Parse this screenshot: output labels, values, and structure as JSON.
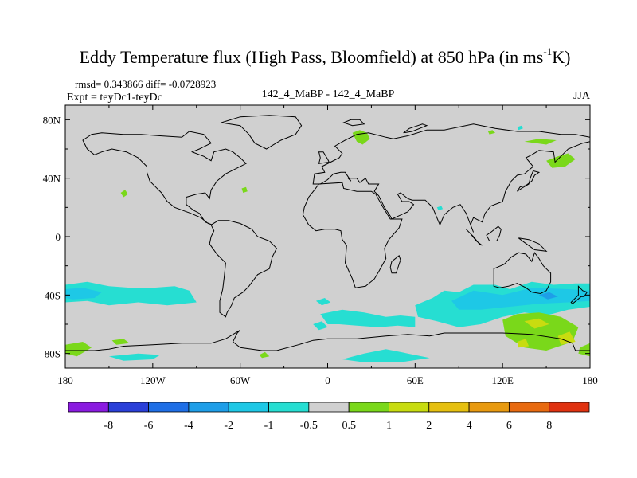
{
  "chart_data": {
    "type": "contour-map",
    "title_main": "Eddy Temperature flux (High Pass, Bloomfield) at 850 hPa (in ms",
    "title_sup": "-1",
    "title_end": "K)",
    "rmsd_diff": "rmsd= 0.343866 diff= -0.0728923",
    "expt": "Expt = teyDc1-teyDc",
    "center_label": "142_4_MaBP - 142_4_MaBP",
    "season": "JJA",
    "lon_range": [
      -180,
      180
    ],
    "lat_range": [
      -90,
      90
    ],
    "x_ticks": [
      {
        "value": -180,
        "label": "180"
      },
      {
        "value": -120,
        "label": "120W"
      },
      {
        "value": -60,
        "label": "60W"
      },
      {
        "value": 0,
        "label": "0"
      },
      {
        "value": 60,
        "label": "60E"
      },
      {
        "value": 120,
        "label": "120E"
      },
      {
        "value": 180,
        "label": "180"
      }
    ],
    "y_ticks": [
      {
        "value": 80,
        "label": "80N"
      },
      {
        "value": 40,
        "label": "40N"
      },
      {
        "value": 0,
        "label": "0"
      },
      {
        "value": -40,
        "label": "40S"
      },
      {
        "value": -80,
        "label": "80S"
      }
    ],
    "colorbar": {
      "levels": [
        -8,
        -6,
        -4,
        -2,
        -1,
        -0.5,
        0.5,
        1,
        2,
        4,
        6,
        8
      ],
      "labels": [
        "-8",
        "-6",
        "-4",
        "-2",
        "-1",
        "-0.5",
        "0.5",
        "1",
        "2",
        "4",
        "6",
        "8"
      ],
      "colors": [
        "#8a1be0",
        "#2a3fd8",
        "#1f6fe6",
        "#1e9ee8",
        "#1ec8e6",
        "#26ded2",
        "#d0d0d0",
        "#7ad81a",
        "#c8dc10",
        "#e6c010",
        "#e89a10",
        "#e86a10",
        "#e03210"
      ]
    },
    "background_color": "#d0d0d0",
    "regions": [
      {
        "name": "southern-ocean-band-west",
        "level": "-0.5",
        "color": "#26ded2",
        "points": [
          [
            -180,
            -33
          ],
          [
            -165,
            -31
          ],
          [
            -150,
            -34
          ],
          [
            -135,
            -35
          ],
          [
            -120,
            -35
          ],
          [
            -105,
            -34
          ],
          [
            -95,
            -37
          ],
          [
            -90,
            -45
          ],
          [
            -110,
            -47
          ],
          [
            -130,
            -45
          ],
          [
            -150,
            -47
          ],
          [
            -165,
            -44
          ],
          [
            -180,
            -45
          ]
        ]
      },
      {
        "name": "southern-ocean-band-west-inner",
        "level": "-1",
        "color": "#1ec8e6",
        "points": [
          [
            -180,
            -36
          ],
          [
            -168,
            -35
          ],
          [
            -155,
            -38
          ],
          [
            -160,
            -42
          ],
          [
            -175,
            -43
          ],
          [
            -180,
            -42
          ]
        ]
      },
      {
        "name": "southern-ocean-band-east",
        "level": "-0.5",
        "color": "#26ded2",
        "points": [
          [
            60,
            -47
          ],
          [
            72,
            -42
          ],
          [
            80,
            -37
          ],
          [
            90,
            -38
          ],
          [
            100,
            -33
          ],
          [
            115,
            -33
          ],
          [
            125,
            -36
          ],
          [
            140,
            -31
          ],
          [
            155,
            -33
          ],
          [
            170,
            -32
          ],
          [
            180,
            -32
          ],
          [
            180,
            -48
          ],
          [
            165,
            -50
          ],
          [
            150,
            -54
          ],
          [
            135,
            -52
          ],
          [
            120,
            -55
          ],
          [
            105,
            -60
          ],
          [
            90,
            -62
          ],
          [
            75,
            -58
          ],
          [
            62,
            -55
          ]
        ]
      },
      {
        "name": "southern-ocean-band-east-inner",
        "level": "-1",
        "color": "#1ec8e6",
        "points": [
          [
            85,
            -44
          ],
          [
            100,
            -37
          ],
          [
            120,
            -40
          ],
          [
            140,
            -35
          ],
          [
            165,
            -36
          ],
          [
            180,
            -37
          ],
          [
            180,
            -44
          ],
          [
            165,
            -45
          ],
          [
            145,
            -46
          ],
          [
            125,
            -48
          ],
          [
            105,
            -50
          ],
          [
            90,
            -50
          ]
        ]
      },
      {
        "name": "southern-ocean-band-east-core",
        "level": "-2",
        "color": "#1e9ee8",
        "points": [
          [
            145,
            -40
          ],
          [
            152,
            -38
          ],
          [
            158,
            -41
          ],
          [
            151,
            -43
          ]
        ]
      },
      {
        "name": "drake-passage-band",
        "level": "-0.5",
        "color": "#26ded2",
        "points": [
          [
            -5,
            -53
          ],
          [
            10,
            -50
          ],
          [
            25,
            -52
          ],
          [
            40,
            -55
          ],
          [
            50,
            -54
          ],
          [
            60,
            -55
          ],
          [
            60,
            -62
          ],
          [
            48,
            -61
          ],
          [
            35,
            -62
          ],
          [
            20,
            -61
          ],
          [
            8,
            -60
          ],
          [
            0,
            -60
          ]
        ]
      },
      {
        "name": "antarctic-coast-blob",
        "level": "-0.5",
        "color": "#26ded2",
        "points": [
          [
            10,
            -84
          ],
          [
            25,
            -80
          ],
          [
            40,
            -77
          ],
          [
            55,
            -80
          ],
          [
            70,
            -83
          ],
          [
            50,
            -86
          ],
          [
            25,
            -86
          ]
        ]
      },
      {
        "name": "south-atlantic-small",
        "level": "-0.5",
        "color": "#26ded2",
        "points": [
          [
            -10,
            -60
          ],
          [
            -4,
            -58
          ],
          [
            0,
            -62
          ],
          [
            -6,
            -64
          ]
        ]
      },
      {
        "name": "south-atlantic-small-2",
        "level": "-0.5",
        "color": "#26ded2",
        "points": [
          [
            -8,
            -44
          ],
          [
            -2,
            -42
          ],
          [
            2,
            -45
          ],
          [
            -4,
            -47
          ]
        ]
      },
      {
        "name": "ross-sea-blob",
        "level": "-0.5",
        "color": "#26ded2",
        "points": [
          [
            -150,
            -82
          ],
          [
            -130,
            -80
          ],
          [
            -115,
            -81
          ],
          [
            -120,
            -84
          ],
          [
            -140,
            -85
          ]
        ]
      },
      {
        "name": "aus-south-positive",
        "level": "1",
        "color": "#7ad81a",
        "points": [
          [
            120,
            -57
          ],
          [
            130,
            -53
          ],
          [
            145,
            -52
          ],
          [
            160,
            -55
          ],
          [
            172,
            -62
          ],
          [
            168,
            -72
          ],
          [
            150,
            -78
          ],
          [
            135,
            -76
          ],
          [
            122,
            -68
          ]
        ]
      },
      {
        "name": "aus-south-positive-core",
        "level": "2",
        "color": "#c8dc10",
        "points": [
          [
            135,
            -58
          ],
          [
            145,
            -56
          ],
          [
            152,
            -60
          ],
          [
            142,
            -63
          ]
        ]
      },
      {
        "name": "aus-south-positive-core-2",
        "level": "2",
        "color": "#c8dc10",
        "points": [
          [
            158,
            -68
          ],
          [
            166,
            -65
          ],
          [
            170,
            -72
          ],
          [
            160,
            -74
          ]
        ]
      },
      {
        "name": "aus-south-positive-core-3",
        "level": "2",
        "color": "#c8dc10",
        "points": [
          [
            130,
            -72
          ],
          [
            136,
            -70
          ],
          [
            138,
            -75
          ],
          [
            131,
            -76
          ]
        ]
      },
      {
        "name": "east-antarctica-positive",
        "level": "1",
        "color": "#7ad81a",
        "points": [
          [
            173,
            -76
          ],
          [
            180,
            -73
          ],
          [
            180,
            -82
          ],
          [
            172,
            -80
          ]
        ]
      },
      {
        "name": "ross-positive",
        "level": "1",
        "color": "#7ad81a",
        "points": [
          [
            -180,
            -74
          ],
          [
            -168,
            -72
          ],
          [
            -162,
            -76
          ],
          [
            -172,
            -82
          ],
          [
            -180,
            -80
          ]
        ]
      },
      {
        "name": "pacific-sw-positive",
        "level": "1",
        "color": "#7ad81a",
        "points": [
          [
            -148,
            -71
          ],
          [
            -140,
            -70
          ],
          [
            -136,
            -73
          ],
          [
            -145,
            -74
          ]
        ]
      },
      {
        "name": "scandinavia-positive",
        "level": "1",
        "color": "#7ad81a",
        "points": [
          [
            17,
            71
          ],
          [
            22,
            73
          ],
          [
            27,
            71
          ],
          [
            29,
            67
          ],
          [
            24,
            63
          ],
          [
            20,
            65
          ]
        ]
      },
      {
        "name": "kamchatka-positive",
        "level": "1",
        "color": "#7ad81a",
        "points": [
          [
            150,
            52
          ],
          [
            158,
            55
          ],
          [
            165,
            57
          ],
          [
            170,
            53
          ],
          [
            163,
            48
          ],
          [
            154,
            47
          ]
        ]
      },
      {
        "name": "siberia-positive",
        "level": "1",
        "color": "#7ad81a",
        "points": [
          [
            135,
            65
          ],
          [
            145,
            67
          ],
          [
            157,
            66
          ],
          [
            150,
            63
          ]
        ]
      },
      {
        "name": "atlantic-positive",
        "level": "1",
        "color": "#7ad81a",
        "points": [
          [
            -59,
            33
          ],
          [
            -56,
            34
          ],
          [
            -55,
            31
          ],
          [
            -58,
            30
          ]
        ]
      },
      {
        "name": "atlantic-positive-2",
        "level": "1",
        "color": "#7ad81a",
        "points": [
          [
            -142,
            30
          ],
          [
            -139,
            32
          ],
          [
            -137,
            29
          ],
          [
            -140,
            27
          ]
        ]
      },
      {
        "name": "scotia-positive",
        "level": "1",
        "color": "#7ad81a",
        "points": [
          [
            -47,
            -81
          ],
          [
            -43,
            -79
          ],
          [
            -40,
            -82
          ],
          [
            -45,
            -83
          ]
        ]
      },
      {
        "name": "siberia-small",
        "level": "1",
        "color": "#7ad81a",
        "points": [
          [
            110,
            72
          ],
          [
            113,
            73
          ],
          [
            115,
            71
          ],
          [
            111,
            70
          ]
        ]
      },
      {
        "name": "pacific-small",
        "level": "-0.5",
        "color": "#26ded2",
        "points": [
          [
            130,
            75
          ],
          [
            133,
            76
          ],
          [
            134,
            74
          ],
          [
            131,
            73
          ]
        ]
      },
      {
        "name": "east-asia-small",
        "level": "-0.5",
        "color": "#26ded2",
        "points": [
          [
            75,
            20
          ],
          [
            78,
            21
          ],
          [
            79,
            19
          ],
          [
            76,
            18
          ]
        ]
      }
    ],
    "coastlines": [
      {
        "name": "eurasia-africa",
        "points": [
          [
            -180,
            80
          ],
          [
            -175,
            82
          ],
          [
            -165,
            84
          ],
          [
            -130,
            84
          ],
          [
            -120,
            83
          ],
          [
            -110,
            82
          ],
          [
            -95,
            81
          ],
          [
            -80,
            82
          ],
          [
            -75,
            84
          ],
          [
            -60,
            82
          ],
          [
            -55,
            80
          ],
          [
            -40,
            82
          ],
          [
            -20,
            82
          ],
          [
            -10,
            80
          ],
          [
            -5,
            80
          ],
          [
            -5,
            77
          ],
          [
            5,
            78
          ],
          [
            10,
            79
          ],
          [
            5,
            82
          ],
          [
            15,
            83
          ],
          [
            30,
            83
          ],
          [
            45,
            83
          ],
          [
            60,
            84
          ],
          [
            80,
            83
          ],
          [
            100,
            82
          ],
          [
            120,
            81
          ],
          [
            140,
            80
          ],
          [
            160,
            79
          ],
          [
            175,
            80
          ],
          [
            180,
            81
          ]
        ]
      }
    ]
  }
}
